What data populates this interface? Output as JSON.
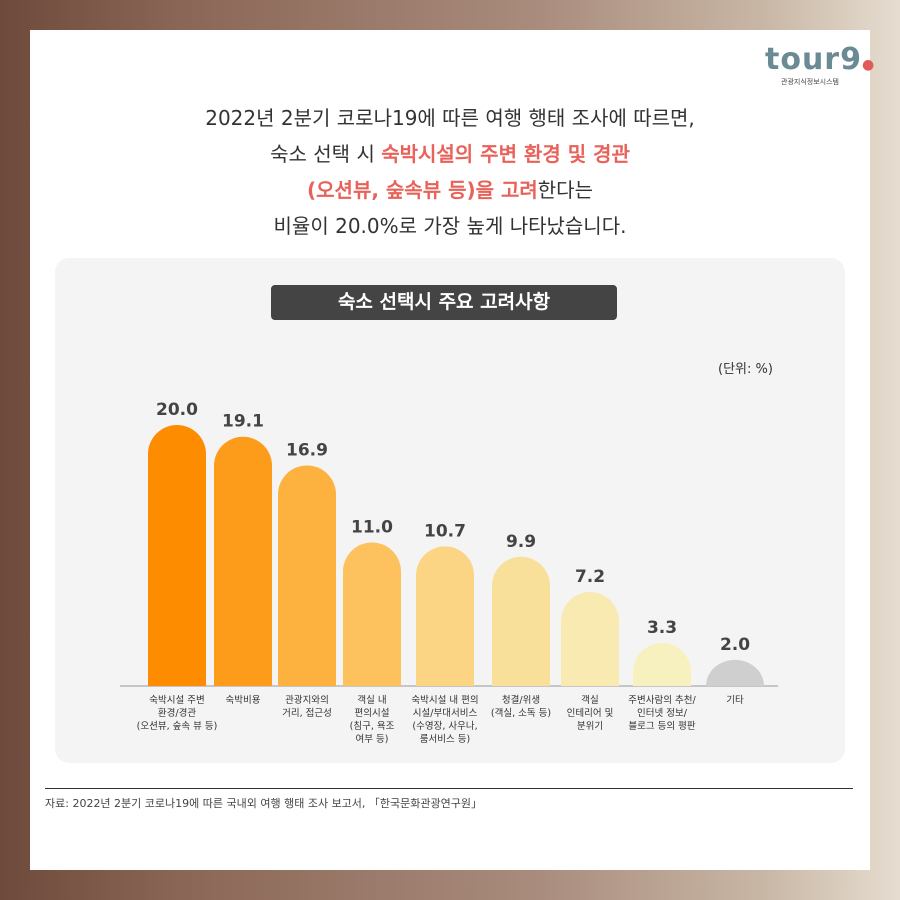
{
  "logo": {
    "word": "tour9",
    "subtitle": "관광지식정보시스템"
  },
  "headline": {
    "line1": "2022년 2분기 코로나19에 따른 여행 행태 조사에 따르면,",
    "line2_a": "숙소 선택 시 ",
    "line2_b": "숙박시설의 주변 환경 및 경관",
    "line3_a": "(오션뷰, 숲속뷰 등)을 고려",
    "line3_b": "한다는",
    "line4": "비율이 20.0%로 가장 높게 나타났습니다."
  },
  "chart_data": {
    "type": "bar",
    "title": "숙소 선택시 주요 고려사항",
    "unit": "(단위: %)",
    "categories": [
      [
        "숙박시설 주변",
        "환경/경관",
        "(오션뷰, 숲속 뷰 등)"
      ],
      [
        "숙박비용"
      ],
      [
        "관광지와의",
        "거리, 접근성"
      ],
      [
        "객실 내",
        "편의시설",
        "(침구, 욕조",
        "여부 등)"
      ],
      [
        "숙박시설 내 편의",
        "시설/부대서비스",
        "(수영장, 사우나,",
        "룸서비스 등)"
      ],
      [
        "청결/위생",
        "(객실, 소독 등)"
      ],
      [
        "객실",
        "인테리어 및",
        "분위기"
      ],
      [
        "주변사람의 추천/",
        "인터넷 정보/",
        "블로그 등의 평판"
      ],
      [
        "기타"
      ]
    ],
    "values": [
      20.0,
      19.1,
      16.9,
      11.0,
      10.7,
      9.9,
      7.2,
      3.3,
      2.0
    ],
    "colors": [
      "#fd8c00",
      "#fd9c1a",
      "#fdb23f",
      "#fdc25e",
      "#fbd584",
      "#f9e09a",
      "#f9eab2",
      "#f7f1c0",
      "#cfcfcf"
    ],
    "ylim": [
      0,
      20
    ]
  },
  "source": "자료: 2022년 2분기 코로나19에 따른 국내외 여행 행태 조사 보고서, 「한국문화관광연구원」"
}
